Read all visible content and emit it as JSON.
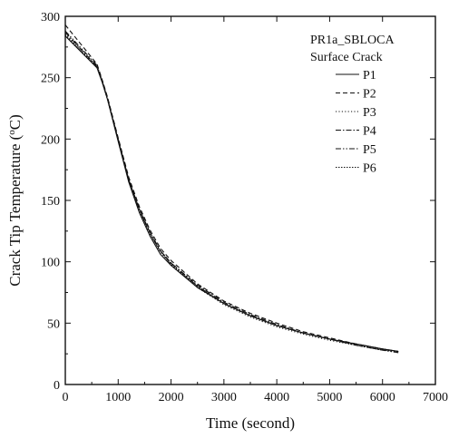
{
  "chart_data": {
    "type": "line",
    "xlabel": "Time (second)",
    "ylabel": "Crack Tip Temperature (°C)",
    "xlim": [
      0,
      7000
    ],
    "ylim": [
      0,
      300
    ],
    "xticks": [
      0,
      1000,
      2000,
      3000,
      4000,
      5000,
      6000,
      7000
    ],
    "yticks": [
      0,
      50,
      100,
      150,
      200,
      250,
      300
    ],
    "grid": false,
    "legend": {
      "title_lines": [
        "PR1a_SBLOCA",
        "Surface Crack"
      ],
      "placement": "top-right"
    },
    "series": [
      {
        "name": "P1",
        "dash": "solid",
        "x": [
          0,
          600,
          700,
          800,
          1000,
          1200,
          1400,
          1600,
          1800,
          2000,
          2500,
          3000,
          3500,
          4000,
          4500,
          5000,
          5500,
          6000,
          6300
        ],
        "y": [
          284,
          258,
          246,
          232,
          198,
          165,
          140,
          121,
          106,
          97,
          79,
          66,
          56,
          48,
          42,
          37,
          33,
          29,
          27
        ]
      },
      {
        "name": "P2",
        "dash": "dashed",
        "x": [
          0,
          600,
          700,
          800,
          1000,
          1200,
          1400,
          1600,
          1800,
          2000,
          2500,
          3000,
          3500,
          4000,
          4500,
          5000,
          5500,
          6000,
          6300
        ],
        "y": [
          293,
          261,
          248,
          234,
          201,
          169,
          145,
          126,
          111,
          101,
          82,
          68,
          58,
          50,
          43,
          38,
          33,
          29,
          27
        ]
      },
      {
        "name": "P3",
        "dash": "dotted",
        "x": [
          0,
          600,
          700,
          800,
          1000,
          1200,
          1400,
          1600,
          1800,
          2000,
          2500,
          3000,
          3500,
          4000,
          4500,
          5000,
          5500,
          6000,
          6300
        ],
        "y": [
          286,
          259,
          247,
          233,
          199,
          166,
          142,
          123,
          108,
          98,
          79,
          65,
          55,
          47,
          41,
          36,
          32,
          28,
          26
        ]
      },
      {
        "name": "P4",
        "dash": "dashdot",
        "x": [
          0,
          600,
          700,
          800,
          1000,
          1200,
          1400,
          1600,
          1800,
          2000,
          2500,
          3000,
          3500,
          4000,
          4500,
          5000,
          5500,
          6000,
          6300
        ],
        "y": [
          287,
          259,
          247,
          233,
          199,
          167,
          143,
          124,
          109,
          99,
          81,
          67,
          57,
          49,
          42,
          37,
          33,
          29,
          27
        ]
      },
      {
        "name": "P5",
        "dash": "dashdotdot",
        "x": [
          0,
          600,
          700,
          800,
          1000,
          1200,
          1400,
          1600,
          1800,
          2000,
          2500,
          3000,
          3500,
          4000,
          4500,
          5000,
          5500,
          6000,
          6300
        ],
        "y": [
          288,
          260,
          247,
          233,
          200,
          167,
          143,
          124,
          109,
          99,
          80,
          66,
          56,
          48,
          42,
          37,
          32,
          28,
          26
        ]
      },
      {
        "name": "P6",
        "dash": "fine-dotted",
        "x": [
          0,
          600,
          700,
          800,
          1000,
          1200,
          1400,
          1600,
          1800,
          2000,
          2500,
          3000,
          3500,
          4000,
          4500,
          5000,
          5500,
          6000,
          6300
        ],
        "y": [
          285,
          258,
          246,
          232,
          199,
          166,
          142,
          123,
          108,
          98,
          80,
          66,
          56,
          48,
          42,
          37,
          32,
          28,
          27
        ]
      }
    ]
  }
}
